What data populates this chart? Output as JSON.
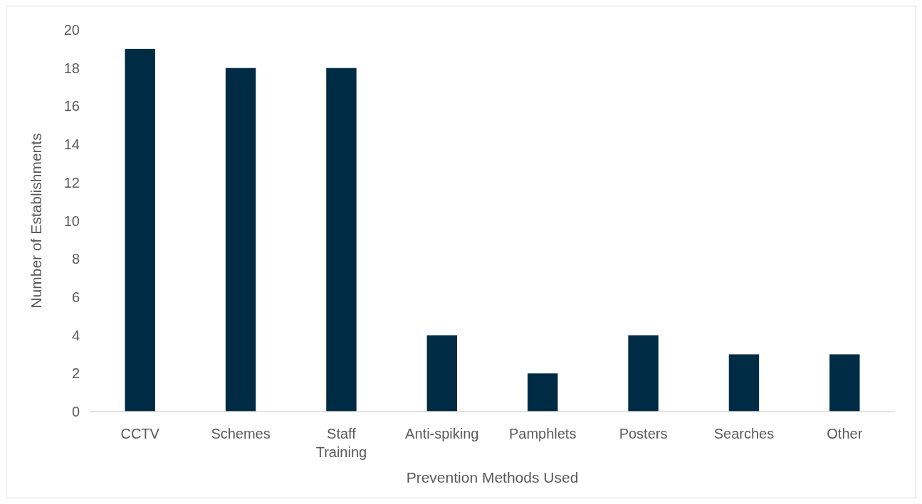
{
  "chart_data": {
    "type": "bar",
    "xlabel": "Prevention Methods Used",
    "ylabel": "Number of Establishments",
    "categories": [
      "CCTV",
      "Schemes",
      "Staff Training",
      "Anti-spiking",
      "Pamphlets",
      "Posters",
      "Searches",
      "Other"
    ],
    "values": [
      19,
      18,
      18,
      4,
      2,
      4,
      3,
      3
    ],
    "color": "#002b45",
    "ylim": [
      0,
      20
    ],
    "yticks": [
      0,
      2,
      4,
      6,
      8,
      10,
      12,
      14,
      16,
      18,
      20
    ],
    "grid": false
  }
}
